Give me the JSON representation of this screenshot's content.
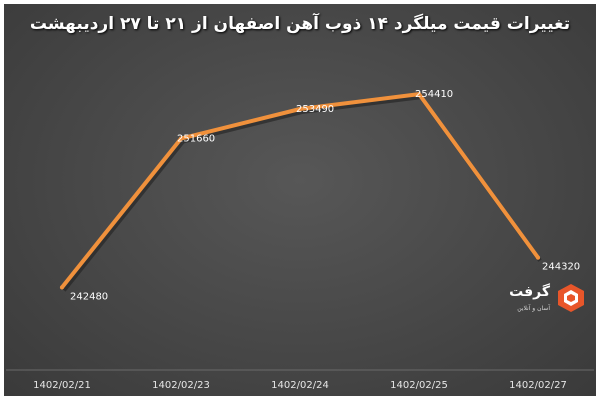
{
  "chart_data": {
    "type": "line",
    "title": "تغییرات قیمت میلگرد ۱۴ ذوب آهن اصفهان از ۲۱ تا ۲۷ اردیبهشت",
    "categories": [
      "1402/02/21",
      "1402/02/23",
      "1402/02/24",
      "1402/02/25",
      "1402/02/27"
    ],
    "series": [
      {
        "values": [
          242480,
          251660,
          253490,
          254410,
          244320
        ],
        "labels": [
          "242480",
          "251660",
          "253490",
          "254410",
          "244320"
        ]
      }
    ],
    "ylim": [
      238000,
      257500
    ],
    "grid": false,
    "legend": "none",
    "line_color": "#f0913c",
    "background_color": "#4a4a4a",
    "text_color": "#ffffff"
  },
  "logo": {
    "name": "گرفت",
    "tagline": "آسان و آنلاین",
    "icon": "logo-mark-icon",
    "colors": [
      "#e8562a",
      "#ffffff"
    ]
  }
}
